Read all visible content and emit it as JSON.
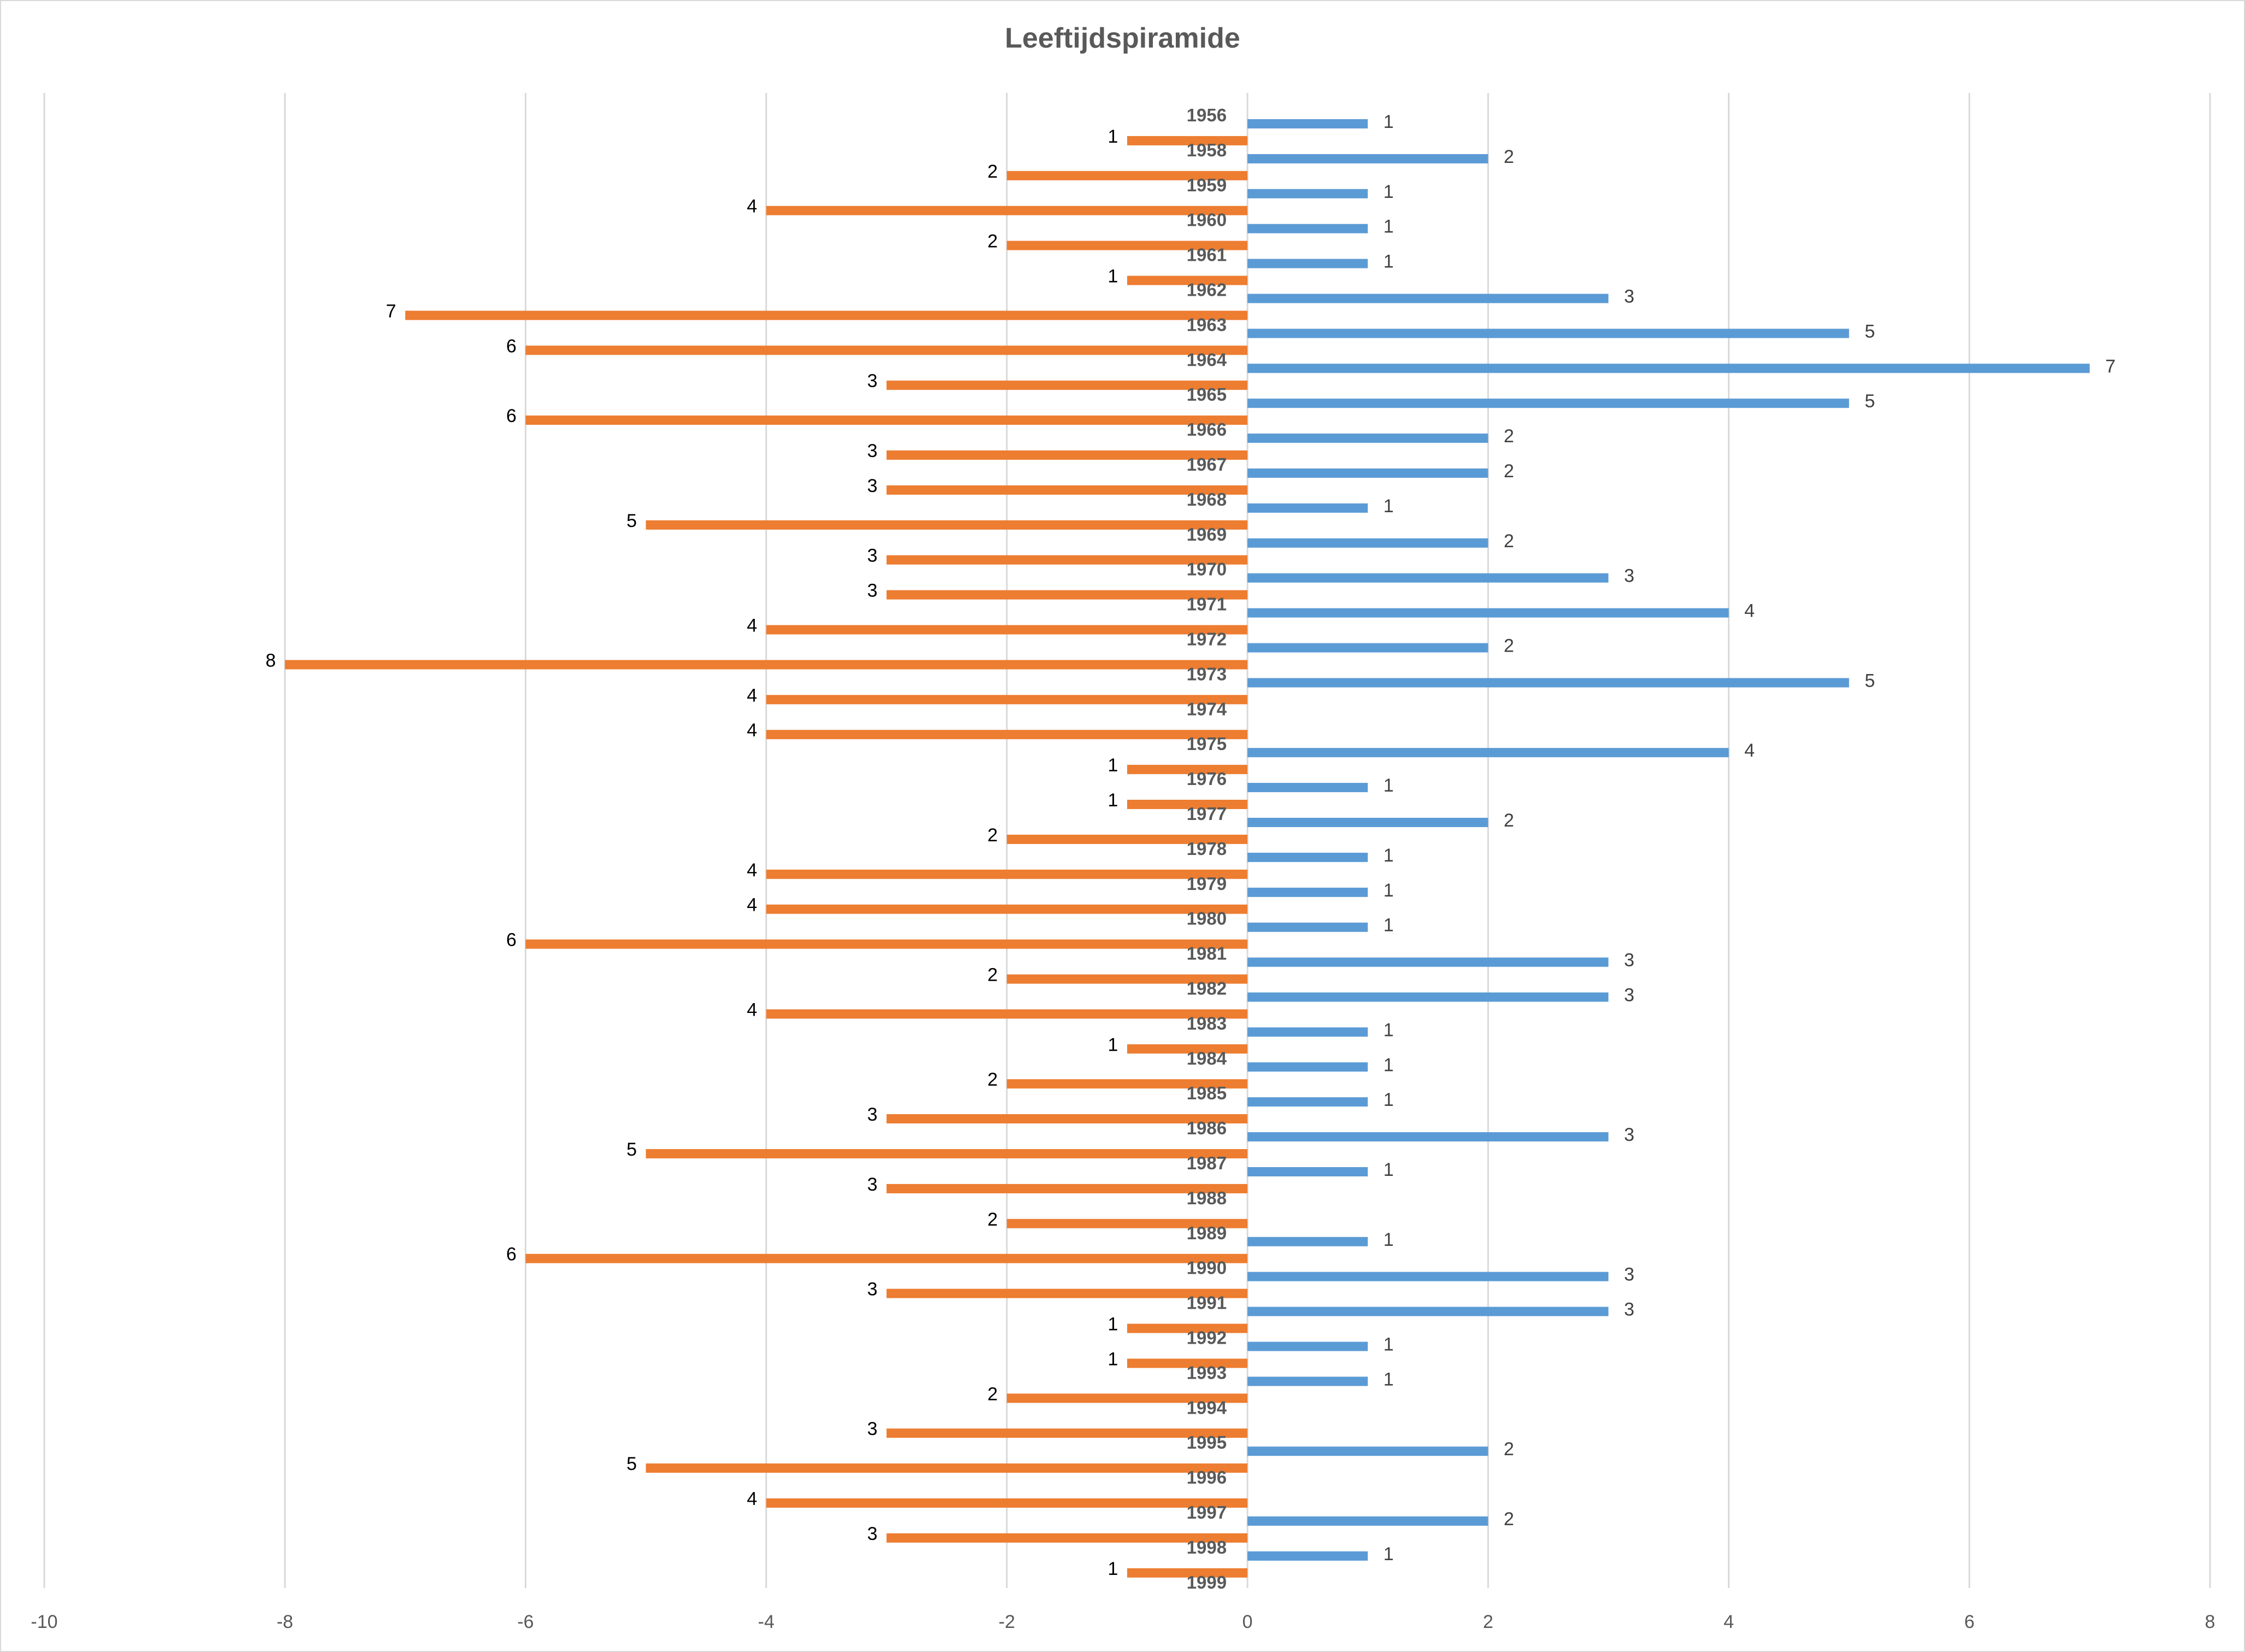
{
  "chart_data": {
    "type": "bar",
    "orientation": "horizontal",
    "title": "Leeftijdspiramide",
    "xlabel": "",
    "ylabel": "",
    "xlim": [
      -10,
      8
    ],
    "xticks": [
      -10,
      -8,
      -6,
      -4,
      -2,
      0,
      2,
      4,
      6,
      8
    ],
    "grid": true,
    "legend": "none",
    "categories": [
      "1956",
      "1958",
      "1959",
      "1960",
      "1961",
      "1962",
      "1963",
      "1964",
      "1965",
      "1966",
      "1967",
      "1968",
      "1969",
      "1970",
      "1971",
      "1972",
      "1973",
      "1974",
      "1975",
      "1976",
      "1977",
      "1978",
      "1979",
      "1980",
      "1981",
      "1982",
      "1983",
      "1984",
      "1985",
      "1986",
      "1987",
      "1988",
      "1989",
      "1990",
      "1991",
      "1992",
      "1993",
      "1994",
      "1995",
      "1996",
      "1997",
      "1998",
      "1999"
    ],
    "series": [
      {
        "color": "#ED7D31",
        "side": "negative",
        "values": [
          null,
          -1,
          -2,
          -4,
          -2,
          -1,
          -7,
          -6,
          -3,
          -6,
          -3,
          -3,
          -5,
          -3,
          -3,
          -4,
          -8,
          -4,
          -4,
          -1,
          -1,
          -2,
          -4,
          -4,
          -6,
          -2,
          -4,
          -1,
          -2,
          -3,
          -5,
          -3,
          -2,
          -6,
          -3,
          -1,
          -1,
          -2,
          -3,
          -5,
          -4,
          -3,
          -1
        ]
      },
      {
        "color": "#5B9BD5",
        "side": "positive",
        "values": [
          1,
          2,
          1,
          1,
          1,
          3,
          5,
          7,
          5,
          2,
          2,
          1,
          2,
          3,
          4,
          2,
          5,
          null,
          4,
          1,
          2,
          1,
          1,
          1,
          3,
          3,
          1,
          1,
          1,
          3,
          1,
          null,
          1,
          3,
          3,
          1,
          1,
          null,
          2,
          null,
          2,
          1,
          null
        ]
      }
    ]
  }
}
